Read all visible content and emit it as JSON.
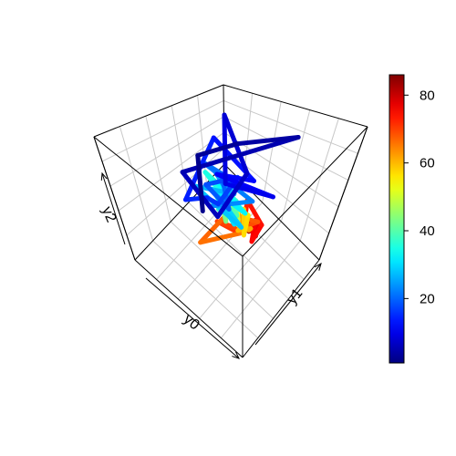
{
  "chart_data": {
    "type": "line",
    "subtype": "3d-line-perspective-box",
    "axes": {
      "x_label": "y0",
      "y_label": "y1",
      "z_label": "y2"
    },
    "box": "full box with grid on back panels",
    "grid": true,
    "colorbar": {
      "palette": "jet",
      "range": [
        1,
        86
      ],
      "ticks": [
        20,
        40,
        60,
        80
      ],
      "tick_labels": [
        "20",
        "40",
        "60",
        "80"
      ],
      "placement": "right"
    },
    "colors": [
      "#00008F",
      "#0000FF",
      "#0080FF",
      "#00FFFF",
      "#80FF80",
      "#FFFF00",
      "#FF8000",
      "#FF0000",
      "#800000"
    ],
    "series": [
      {
        "color_variable": "index",
        "points": [
          [
            0.8,
            0.55,
            0.15
          ],
          [
            0.95,
            0.7,
            0.45
          ],
          [
            0.55,
            0.6,
            0.95
          ],
          [
            0.4,
            0.95,
            0.8
          ],
          [
            0.95,
            0.55,
            0.4
          ],
          [
            0.75,
            0.65,
            0.05
          ],
          [
            0.7,
            0.9,
            0.3
          ],
          [
            0.95,
            0.95,
            0.7
          ],
          [
            0.85,
            0.85,
            0.1
          ],
          [
            0.3,
            0.65,
            0.6
          ],
          [
            0.7,
            0.6,
            0.55
          ],
          [
            0.6,
            0.85,
            0.35
          ],
          [
            0.9,
            0.8,
            0.6
          ],
          [
            0.85,
            0.45,
            0.3
          ],
          [
            0.9,
            0.7,
            0.05
          ],
          [
            0.65,
            0.55,
            0.35
          ],
          [
            0.7,
            0.8,
            0.35
          ],
          [
            0.75,
            0.55,
            0.45
          ],
          [
            0.6,
            0.6,
            0.3
          ],
          [
            0.8,
            0.75,
            0.35
          ],
          [
            0.85,
            0.65,
            0.5
          ],
          [
            0.45,
            0.65,
            0.45
          ],
          [
            0.75,
            0.6,
            0.2
          ],
          [
            0.55,
            0.55,
            0.5
          ],
          [
            0.8,
            0.7,
            0.4
          ],
          [
            0.6,
            0.65,
            0.4
          ],
          [
            0.85,
            0.55,
            0.35
          ],
          [
            0.45,
            0.55,
            0.3
          ],
          [
            0.7,
            0.6,
            0.35
          ],
          [
            0.55,
            0.6,
            0.2
          ],
          [
            0.7,
            0.55,
            0.45
          ],
          [
            0.5,
            0.65,
            0.3
          ],
          [
            0.65,
            0.55,
            0.55
          ],
          [
            0.6,
            0.6,
            0.35
          ],
          [
            0.7,
            0.5,
            0.65
          ],
          [
            0.5,
            0.55,
            0.5
          ],
          [
            0.65,
            0.55,
            0.3
          ],
          [
            0.55,
            0.5,
            0.6
          ],
          [
            0.6,
            0.55,
            0.4
          ],
          [
            0.45,
            0.5,
            0.45
          ],
          [
            0.55,
            0.5,
            0.75
          ],
          [
            0.6,
            0.5,
            0.55
          ],
          [
            0.5,
            0.45,
            0.4
          ],
          [
            0.55,
            0.5,
            0.6
          ],
          [
            0.45,
            0.5,
            0.55
          ],
          [
            0.5,
            0.45,
            0.45
          ],
          [
            0.45,
            0.5,
            0.5
          ],
          [
            0.55,
            0.5,
            0.45
          ],
          [
            0.5,
            0.5,
            0.55
          ],
          [
            0.4,
            0.45,
            0.5
          ],
          [
            0.55,
            0.45,
            0.55
          ],
          [
            0.45,
            0.45,
            0.45
          ],
          [
            0.45,
            0.5,
            0.55
          ],
          [
            0.4,
            0.45,
            0.45
          ],
          [
            0.45,
            0.45,
            0.6
          ],
          [
            0.4,
            0.55,
            0.45
          ],
          [
            0.35,
            0.45,
            0.4
          ],
          [
            0.4,
            0.5,
            0.55
          ],
          [
            0.35,
            0.45,
            0.5
          ],
          [
            0.4,
            0.45,
            0.4
          ],
          [
            0.3,
            0.45,
            0.5
          ],
          [
            0.35,
            0.5,
            0.4
          ],
          [
            0.4,
            0.45,
            0.55
          ],
          [
            0.35,
            0.4,
            0.55
          ],
          [
            0.3,
            0.35,
            0.55
          ],
          [
            0.6,
            0.3,
            0.25
          ],
          [
            0.45,
            0.4,
            0.55
          ],
          [
            0.25,
            0.45,
            0.6
          ],
          [
            0.35,
            0.4,
            0.5
          ],
          [
            0.35,
            0.2,
            0.75
          ],
          [
            0.25,
            0.25,
            0.7
          ],
          [
            0.2,
            0.25,
            0.75
          ],
          [
            0.3,
            0.4,
            0.8
          ],
          [
            0.15,
            0.35,
            0.75
          ],
          [
            0.1,
            0.2,
            0.8
          ],
          [
            0.2,
            0.35,
            0.7
          ],
          [
            0.1,
            0.25,
            0.9
          ],
          [
            0.15,
            0.25,
            0.8
          ],
          [
            0.2,
            0.3,
            0.75
          ],
          [
            0.15,
            0.3,
            0.85
          ],
          [
            0.15,
            0.3,
            0.7
          ],
          [
            0.2,
            0.3,
            0.8
          ],
          [
            0.15,
            0.35,
            0.75
          ],
          [
            0.2,
            0.3,
            0.7
          ],
          [
            0.15,
            0.3,
            0.8
          ],
          [
            0.2,
            0.35,
            0.75
          ]
        ]
      }
    ]
  }
}
